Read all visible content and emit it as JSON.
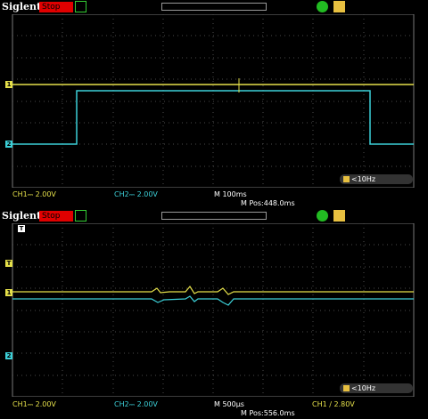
{
  "panel1": {
    "brand": "Siglent",
    "status": "Stop",
    "freq": "<10Hz",
    "ch1": "CH1⎓ 2.00V",
    "ch2": "CH2⎓ 2.00V",
    "timebase": "M 100ms",
    "mpos": "M Pos:448.0ms",
    "marker_ch1": "1",
    "marker_ch2": "2"
  },
  "panel2": {
    "brand": "Siglent",
    "status": "Stop",
    "freq": "<10Hz",
    "ch1": "CH1⎓ 2.00V",
    "ch2": "CH2⎓ 2.00V",
    "timebase": "M 500µs",
    "mpos": "M Pos:556.0ms",
    "trigger": "CH1 ∕ 2.80V",
    "marker_T": "T",
    "marker_ch1": "1",
    "marker_ch2": "2",
    "marker_top": "T"
  },
  "colors": {
    "ch1": "#e5e04a",
    "ch2": "#3cd0d8",
    "grid": "#6a6a6a",
    "stop": "#e00000"
  },
  "icons": [
    "run-status-icon",
    "print-icon",
    "usb-icon"
  ]
}
